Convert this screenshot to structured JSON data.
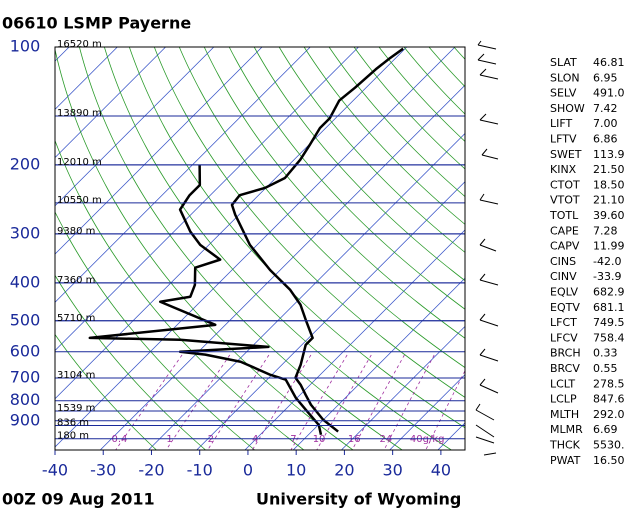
{
  "chart_data": {
    "type": "skew-t",
    "title": "06610 LSMP Payerne",
    "subtitle": "00Z 09 Aug 2011",
    "source": "University of Wyoming",
    "xlim": [
      -40,
      45
    ],
    "xticks": [
      -40,
      -30,
      -20,
      -10,
      0,
      10,
      20,
      30,
      40
    ],
    "ylim": [
      100,
      1050
    ],
    "yticks": [
      100,
      200,
      300,
      400,
      500,
      600,
      700,
      800,
      900
    ],
    "log_y": true,
    "height_levels": [
      {
        "pressure": 100,
        "label": "16520 m"
      },
      {
        "pressure": 150,
        "label": "13890 m"
      },
      {
        "pressure": 200,
        "label": "12010 m"
      },
      {
        "pressure": 250,
        "label": "10550 m"
      },
      {
        "pressure": 300,
        "label": "9380 m"
      },
      {
        "pressure": 400,
        "label": "7360 m"
      },
      {
        "pressure": 500,
        "label": "5710 m"
      },
      {
        "pressure": 700,
        "label": "3104 m"
      },
      {
        "pressure": 850,
        "label": "1539 m"
      },
      {
        "pressure": 925,
        "label": "836 m"
      },
      {
        "pressure": 1000,
        "label": "180 m"
      }
    ],
    "mixing_ratios": [
      0.4,
      1,
      2,
      4,
      7,
      10,
      16,
      24,
      {
        "value": 40,
        "label": "40g/kg"
      }
    ],
    "temperature": {
      "color": "#000000",
      "pressure": [
        959,
        894,
        819,
        772,
        728,
        699,
        648,
        576,
        553,
        497,
        455,
        417,
        371,
        320,
        268,
        253,
        239,
        229,
        216,
        194,
        178,
        161,
        152,
        137,
        127,
        114,
        107,
        101
      ],
      "values": [
        15.5,
        9.9,
        4.3,
        1.1,
        -2.0,
        -4.5,
        -6.1,
        -9.2,
        -9.2,
        -14.4,
        -18.6,
        -23.8,
        -32.1,
        -41.5,
        -50.8,
        -53.5,
        -53.9,
        -50.2,
        -48.1,
        -48.7,
        -49.8,
        -51.2,
        -51.2,
        -52.9,
        -52.3,
        -51.8,
        -51.2,
        -50.4
      ]
    },
    "dewpoint": {
      "color": "#000000",
      "pressure": [
        977,
        922,
        844,
        786,
        707,
        687,
        636,
        610,
        600,
        583,
        559,
        553,
        512,
        447,
        434,
        405,
        366,
        349,
        320,
        296,
        260,
        239,
        225,
        200
      ],
      "values": [
        12.6,
        10.1,
        4.3,
        -0.3,
        -6.1,
        -10.3,
        -19.2,
        -28.0,
        -33.8,
        -16.5,
        -36.3,
        -55.4,
        -32.1,
        -48.3,
        -43.1,
        -44.6,
        -48.1,
        -44.6,
        -51.8,
        -56.6,
        -63.3,
        -64.3,
        -64.3,
        -68.5
      ]
    }
  },
  "station_info": [
    [
      "SLAT",
      "46.81"
    ],
    [
      "SLON",
      "6.95"
    ],
    [
      "SELV",
      "491.0"
    ],
    [
      "SHOW",
      "7.42"
    ],
    [
      "LIFT",
      "7.00"
    ],
    [
      "LFTV",
      "6.86"
    ],
    [
      "SWET",
      "113.9"
    ],
    [
      "KINX",
      "21.50"
    ],
    [
      "CTOT",
      "18.50"
    ],
    [
      "VTOT",
      "21.10"
    ],
    [
      "TOTL",
      "39.60"
    ],
    [
      "CAPE",
      "7.28"
    ],
    [
      "CAPV",
      "11.99"
    ],
    [
      "CINS",
      "-42.0"
    ],
    [
      "CINV",
      "-33.9"
    ],
    [
      "EQLV",
      "682.9"
    ],
    [
      "EQTV",
      "681.1"
    ],
    [
      "LFCT",
      "749.5"
    ],
    [
      "LFCV",
      "758.4"
    ],
    [
      "BRCH",
      "0.33"
    ],
    [
      "BRCV",
      "0.55"
    ],
    [
      "LCLT",
      "278.5"
    ],
    [
      "LCLP",
      "847.6"
    ],
    [
      "MLTH",
      "292.0"
    ],
    [
      "MLMR",
      "6.69"
    ],
    [
      "THCK",
      "5530."
    ],
    [
      "PWAT",
      "16.50"
    ]
  ]
}
